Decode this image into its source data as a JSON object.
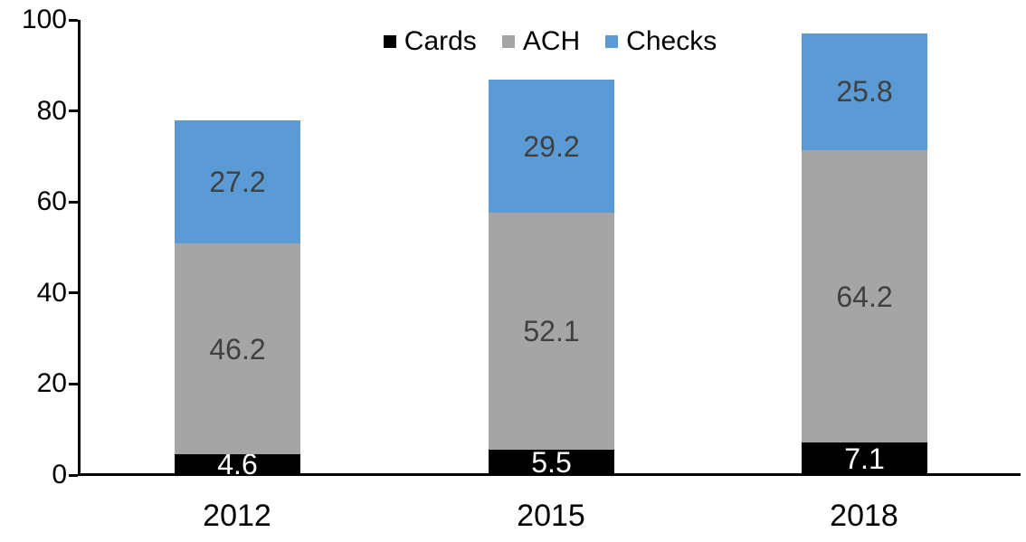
{
  "chart_data": {
    "type": "bar",
    "stacked": true,
    "title": "",
    "xlabel": "",
    "ylabel": "",
    "categories": [
      "2012",
      "2015",
      "2018"
    ],
    "series": [
      {
        "name": "Cards",
        "color": "#000000",
        "label_color": "#FFFFFF",
        "values": [
          4.6,
          5.5,
          7.1
        ]
      },
      {
        "name": "ACH",
        "color": "#A5A5A5",
        "label_color": "#404040",
        "values": [
          46.2,
          52.1,
          64.2
        ]
      },
      {
        "name": "Checks",
        "color": "#5B9BD5",
        "label_color": "#404040",
        "values": [
          27.2,
          29.2,
          25.8
        ]
      }
    ],
    "totals": [
      78.0,
      86.8,
      97.1
    ],
    "ylim": [
      0,
      100
    ],
    "yticks": [
      0,
      20,
      40,
      60,
      80,
      100
    ],
    "grid": false,
    "legend_position": "top-center",
    "background_color": "#FFFFFF",
    "axis_color": "#000000"
  }
}
